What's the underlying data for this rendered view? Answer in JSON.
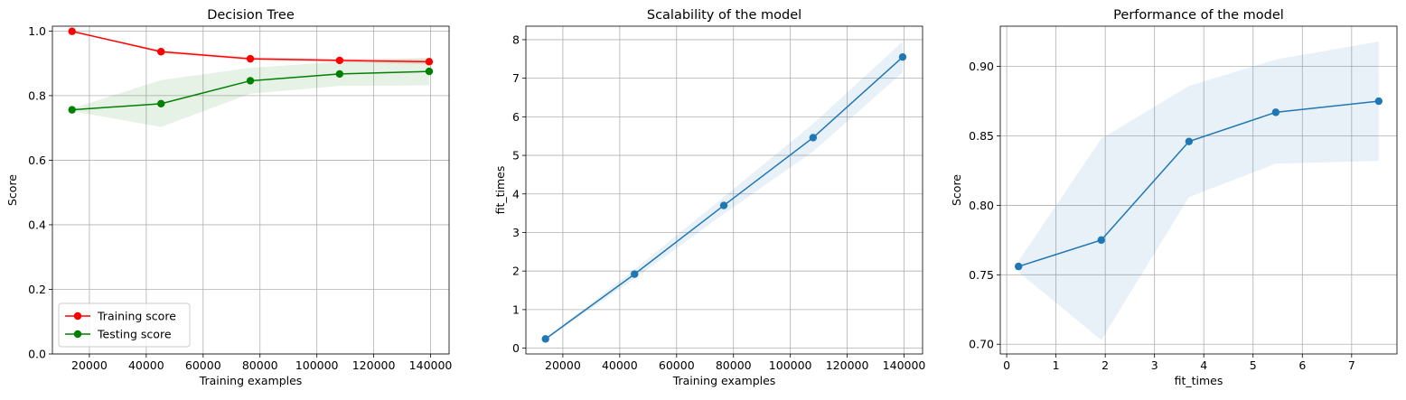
{
  "chart_data": [
    {
      "type": "line",
      "title": "Decision Tree",
      "xlabel": "Training examples",
      "ylabel": "Score",
      "xlim": [
        7000,
        146500
      ],
      "ylim": [
        0.0,
        1.015
      ],
      "xticks": [
        20000,
        40000,
        60000,
        80000,
        100000,
        120000,
        140000
      ],
      "yticks": [
        0.0,
        0.2,
        0.4,
        0.6,
        0.8,
        1.0
      ],
      "ytick_decimals": 1,
      "grid": true,
      "legend": "lower left",
      "x": [
        13900,
        45200,
        76600,
        108000,
        139500
      ],
      "series": [
        {
          "name": "Training score",
          "color": "#ff0000",
          "values": [
            0.999,
            0.936,
            0.914,
            0.909,
            0.905
          ],
          "band_lower": [
            0.999,
            0.931,
            0.909,
            0.903,
            0.897
          ],
          "band_upper": [
            0.999,
            0.941,
            0.919,
            0.915,
            0.913
          ]
        },
        {
          "name": "Testing score",
          "color": "#008000",
          "values": [
            0.756,
            0.775,
            0.846,
            0.867,
            0.875
          ],
          "band_lower": [
            0.752,
            0.703,
            0.806,
            0.83,
            0.832
          ],
          "band_upper": [
            0.76,
            0.848,
            0.886,
            0.905,
            0.918
          ]
        }
      ]
    },
    {
      "type": "line",
      "title": "Scalability of the model",
      "xlabel": "Training examples",
      "ylabel": "fit_times",
      "xlim": [
        7000,
        146500
      ],
      "ylim": [
        -0.15,
        8.35
      ],
      "xticks": [
        20000,
        40000,
        60000,
        80000,
        100000,
        120000,
        140000
      ],
      "yticks": [
        0,
        1,
        2,
        3,
        4,
        5,
        6,
        7,
        8
      ],
      "ytick_decimals": 0,
      "grid": true,
      "x": [
        13900,
        45200,
        76600,
        108000,
        139500
      ],
      "series": [
        {
          "color": "#1f77b4",
          "values": [
            0.24,
            1.92,
            3.7,
            5.46,
            7.55
          ],
          "band_lower": [
            0.22,
            1.8,
            3.48,
            5.1,
            7.15
          ],
          "band_upper": [
            0.26,
            2.04,
            3.92,
            5.82,
            7.95
          ]
        }
      ]
    },
    {
      "type": "line",
      "title": "Performance of the model",
      "xlabel": "fit_times",
      "ylabel": "Score",
      "xlim": [
        -0.13,
        7.92
      ],
      "ylim": [
        0.693,
        0.929
      ],
      "xticks": [
        0,
        1,
        2,
        3,
        4,
        5,
        6,
        7
      ],
      "yticks": [
        0.7,
        0.75,
        0.8,
        0.85,
        0.9
      ],
      "ytick_decimals": 2,
      "grid": true,
      "x": [
        0.24,
        1.92,
        3.7,
        5.46,
        7.55
      ],
      "series": [
        {
          "color": "#1f77b4",
          "values": [
            0.756,
            0.775,
            0.846,
            0.867,
            0.875
          ],
          "band_lower": [
            0.752,
            0.703,
            0.806,
            0.83,
            0.832
          ],
          "band_upper": [
            0.76,
            0.848,
            0.886,
            0.905,
            0.918
          ]
        }
      ]
    }
  ]
}
